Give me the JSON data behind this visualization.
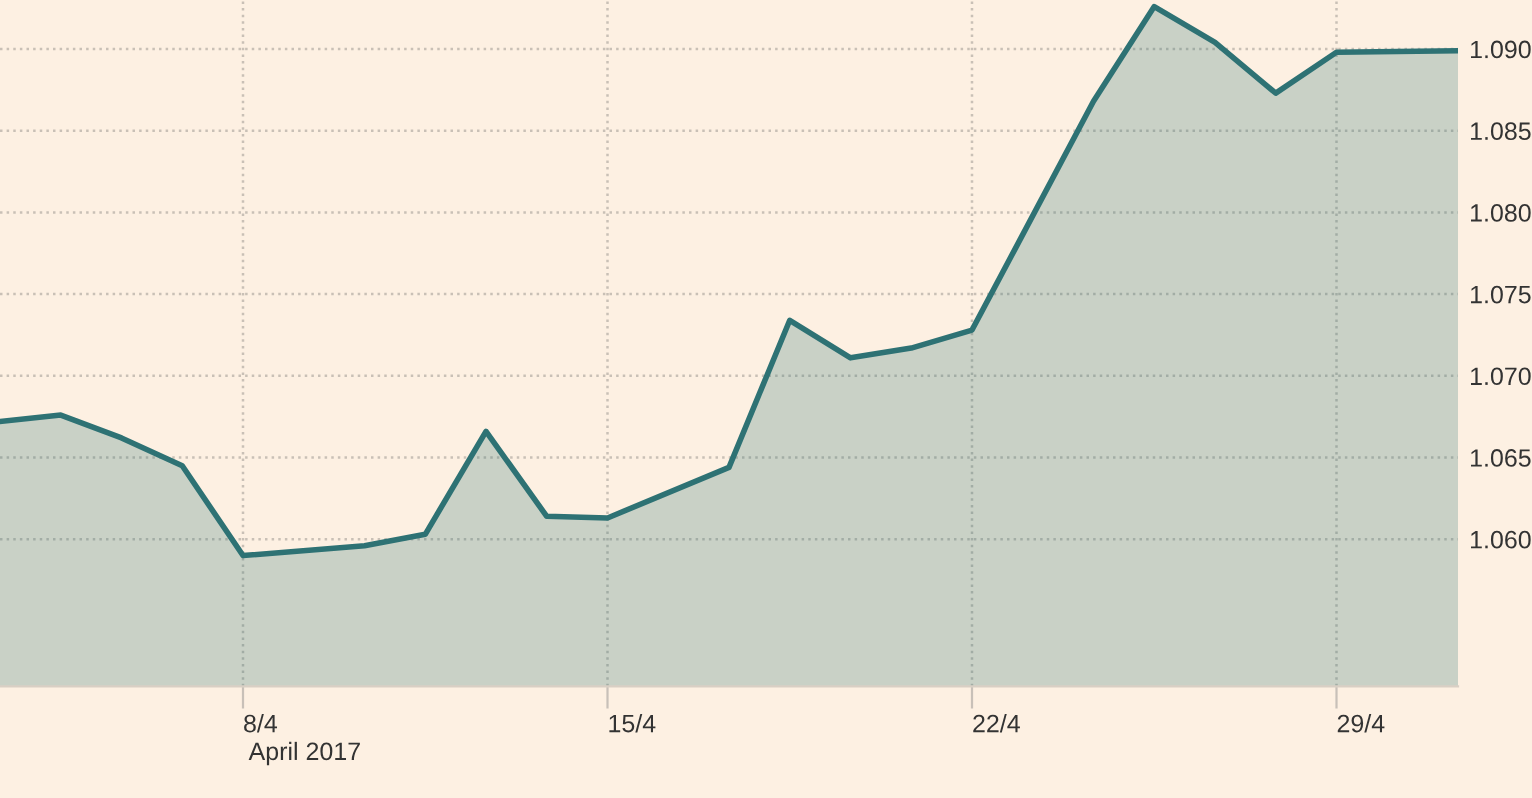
{
  "chart_data": {
    "type": "area",
    "categories": [
      null,
      null,
      null,
      null,
      "8/4",
      null,
      null,
      null,
      null,
      null,
      "15/4",
      null,
      null,
      null,
      null,
      null,
      "22/4",
      null,
      null,
      null,
      null,
      null,
      "29/4",
      null,
      null
    ],
    "series": [
      {
        "color": "#2e7274",
        "values": [
          1.0672,
          1.0676,
          1.0662,
          1.0645,
          1.059,
          null,
          1.0596,
          1.0603,
          1.0666,
          1.0614,
          1.0613,
          null,
          1.0644,
          1.0734,
          1.0711,
          1.0717,
          1.0728,
          null,
          1.0868,
          1.0926,
          1.0904,
          1.0873,
          1.0898,
          null,
          1.0899
        ]
      }
    ],
    "ylim": [
      1.051,
      1.093
    ],
    "yticks": [
      {
        "value": 1.06,
        "label": "1.060"
      },
      {
        "value": 1.065,
        "label": "1.065"
      },
      {
        "value": 1.07,
        "label": "1.070"
      },
      {
        "value": 1.075,
        "label": "1.075"
      },
      {
        "value": 1.08,
        "label": "1.080"
      },
      {
        "value": 1.085,
        "label": "1.085"
      },
      {
        "value": 1.09,
        "label": "1.090"
      }
    ],
    "annotations": [
      "April 2017"
    ],
    "grid": true
  }
}
